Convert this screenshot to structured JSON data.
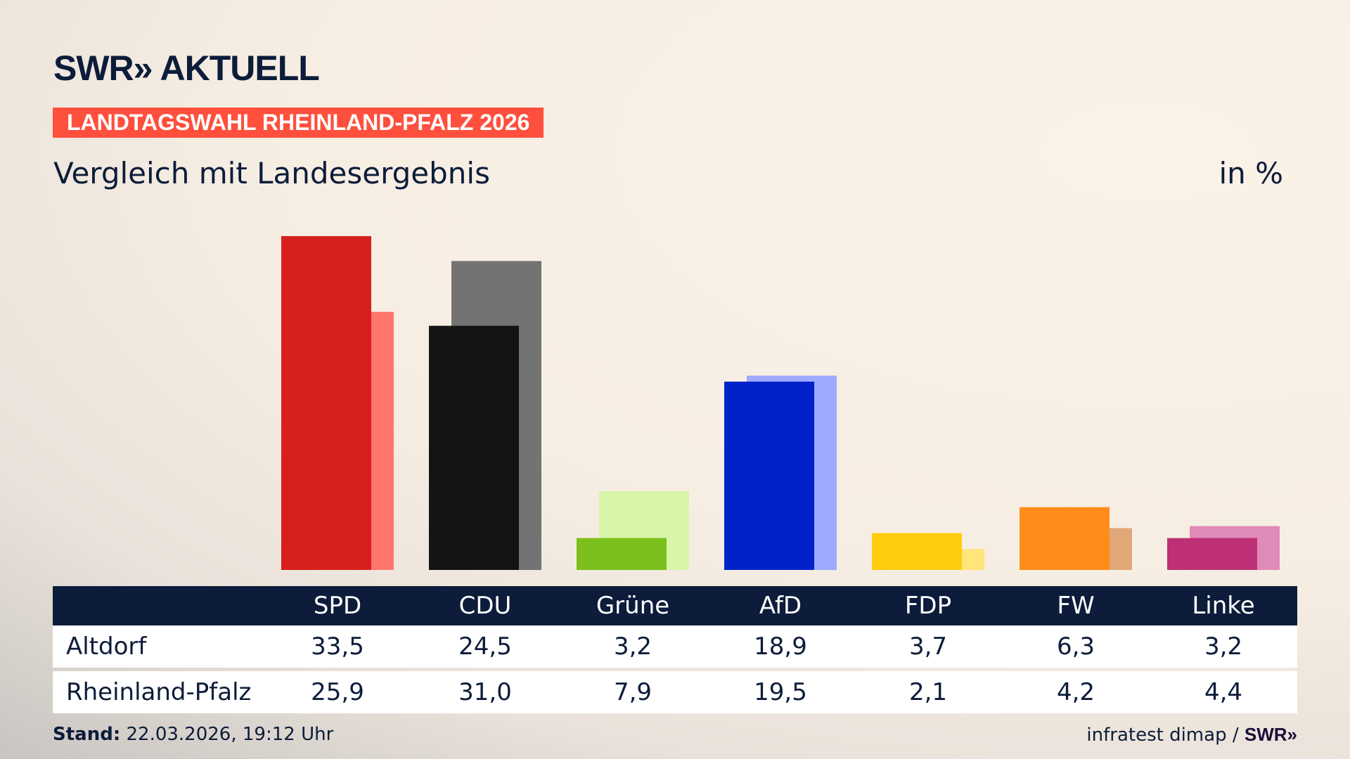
{
  "header": {
    "logo": "SWR» AKTUELL",
    "banner": "LANDTAGSWAHL RHEINLAND-PFALZ 2026",
    "subtitle": "Vergleich mit Landesergebnis",
    "unit": "in %"
  },
  "chart_data": {
    "type": "bar",
    "categories": [
      "SPD",
      "CDU",
      "Grüne",
      "AfD",
      "FDP",
      "FW",
      "Linke"
    ],
    "series": [
      {
        "name": "Altdorf",
        "values": [
          33.5,
          24.5,
          3.2,
          18.9,
          3.7,
          6.3,
          3.2
        ]
      },
      {
        "name": "Rheinland-Pfalz",
        "values": [
          25.9,
          31.0,
          7.9,
          19.5,
          2.1,
          4.2,
          4.4
        ]
      }
    ],
    "display_values": {
      "Altdorf": [
        "33,5",
        "24,5",
        "3,2",
        "18,9",
        "3,7",
        "6,3",
        "3,2"
      ],
      "Rheinland-Pfalz": [
        "25,9",
        "31,0",
        "7,9",
        "19,5",
        "2,1",
        "4,2",
        "4,4"
      ]
    },
    "colors": {
      "Altdorf": [
        "#d81f1f",
        "#141414",
        "#7abf1a",
        "#0022c8",
        "#ffcc0e",
        "#ff8c1a",
        "#bd3075"
      ],
      "Rheinland-Pfalz": [
        "#ff766d",
        "#737373",
        "#d8f5a8",
        "#9daaff",
        "#ffe57a",
        "#e0a878",
        "#e08ab8"
      ]
    },
    "ylim": [
      0,
      35
    ],
    "grid": false
  },
  "footer": {
    "stand_label": "Stand:",
    "stand_value": "22.03.2026, 19:12 Uhr",
    "source": "infratest dimap /",
    "source_logo": "SWR»"
  }
}
